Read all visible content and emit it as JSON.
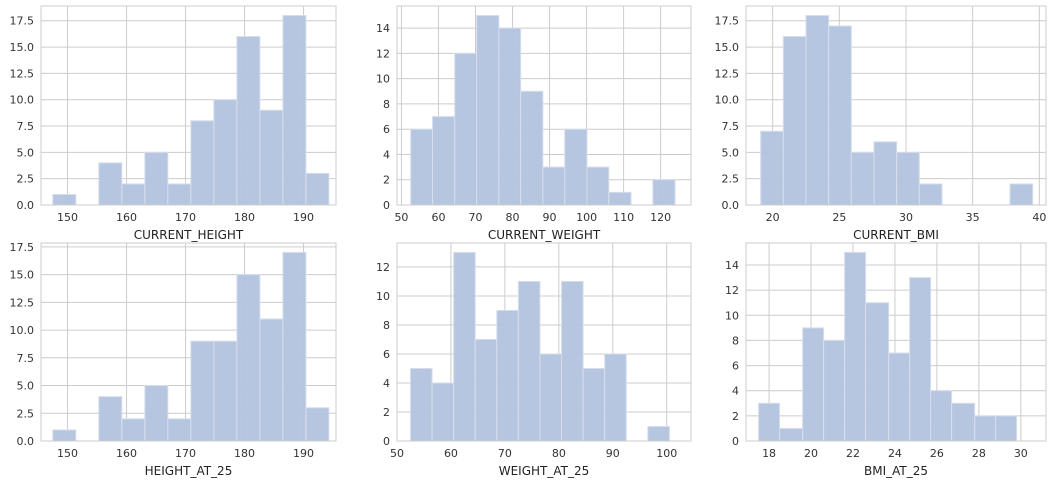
{
  "chart_data": [
    {
      "type": "histogram",
      "xlabel": "CURRENT_HEIGHT",
      "xlim": [
        145.5,
        195.5
      ],
      "ylim": [
        0,
        18.9
      ],
      "xticks": [
        150,
        160,
        170,
        180,
        190
      ],
      "yticks": [
        0.0,
        2.5,
        5.0,
        7.5,
        10.0,
        12.5,
        15.0,
        17.5
      ],
      "bins": [
        {
          "x0": 147.5,
          "x1": 151.4,
          "count": 1
        },
        {
          "x0": 151.4,
          "x1": 155.3,
          "count": 0
        },
        {
          "x0": 155.3,
          "x1": 159.2,
          "count": 4
        },
        {
          "x0": 159.2,
          "x1": 163.1,
          "count": 2
        },
        {
          "x0": 163.1,
          "x1": 167.0,
          "count": 5
        },
        {
          "x0": 167.0,
          "x1": 170.9,
          "count": 2
        },
        {
          "x0": 170.9,
          "x1": 174.8,
          "count": 8
        },
        {
          "x0": 174.8,
          "x1": 178.7,
          "count": 10
        },
        {
          "x0": 178.7,
          "x1": 182.6,
          "count": 16
        },
        {
          "x0": 182.6,
          "x1": 186.5,
          "count": 9
        },
        {
          "x0": 186.5,
          "x1": 190.4,
          "count": 18
        },
        {
          "x0": 190.4,
          "x1": 194.3,
          "count": 3
        }
      ]
    },
    {
      "type": "histogram",
      "xlabel": "CURRENT_WEIGHT",
      "xlim": [
        48.8,
        128.2
      ],
      "ylim": [
        0,
        15.75
      ],
      "xticks": [
        50,
        60,
        70,
        80,
        90,
        100,
        110,
        120
      ],
      "yticks": [
        0,
        2,
        4,
        6,
        8,
        10,
        12,
        14
      ],
      "bins": [
        {
          "x0": 52.5,
          "x1": 58.4,
          "count": 6
        },
        {
          "x0": 58.4,
          "x1": 64.4,
          "count": 7
        },
        {
          "x0": 64.4,
          "x1": 70.3,
          "count": 12
        },
        {
          "x0": 70.3,
          "x1": 76.3,
          "count": 15
        },
        {
          "x0": 76.3,
          "x1": 82.2,
          "count": 14
        },
        {
          "x0": 82.2,
          "x1": 88.2,
          "count": 9
        },
        {
          "x0": 88.2,
          "x1": 94.1,
          "count": 3
        },
        {
          "x0": 94.1,
          "x1": 100.1,
          "count": 6
        },
        {
          "x0": 100.1,
          "x1": 106.0,
          "count": 3
        },
        {
          "x0": 106.0,
          "x1": 112.0,
          "count": 1
        },
        {
          "x0": 112.0,
          "x1": 117.9,
          "count": 0
        },
        {
          "x0": 117.9,
          "x1": 123.9,
          "count": 2
        }
      ]
    },
    {
      "type": "histogram",
      "xlabel": "CURRENT_BMI",
      "xlim": [
        18.0,
        40.5
      ],
      "ylim": [
        0,
        18.9
      ],
      "xticks": [
        20,
        25,
        30,
        35,
        40
      ],
      "yticks": [
        0.0,
        2.5,
        5.0,
        7.5,
        10.0,
        12.5,
        15.0,
        17.5
      ],
      "bins": [
        {
          "x0": 19.1,
          "x1": 20.8,
          "count": 7
        },
        {
          "x0": 20.8,
          "x1": 22.5,
          "count": 16
        },
        {
          "x0": 22.5,
          "x1": 24.2,
          "count": 18
        },
        {
          "x0": 24.2,
          "x1": 25.9,
          "count": 17
        },
        {
          "x0": 25.9,
          "x1": 27.6,
          "count": 5
        },
        {
          "x0": 27.6,
          "x1": 29.3,
          "count": 6
        },
        {
          "x0": 29.3,
          "x1": 31.0,
          "count": 5
        },
        {
          "x0": 31.0,
          "x1": 32.7,
          "count": 2
        },
        {
          "x0": 32.7,
          "x1": 34.4,
          "count": 0
        },
        {
          "x0": 34.4,
          "x1": 36.1,
          "count": 0
        },
        {
          "x0": 36.1,
          "x1": 37.8,
          "count": 0
        },
        {
          "x0": 37.8,
          "x1": 39.5,
          "count": 2
        }
      ]
    },
    {
      "type": "histogram",
      "xlabel": "HEIGHT_AT_25",
      "xlim": [
        145.5,
        195.5
      ],
      "ylim": [
        0,
        17.85
      ],
      "xticks": [
        150,
        160,
        170,
        180,
        190
      ],
      "yticks": [
        0.0,
        2.5,
        5.0,
        7.5,
        10.0,
        12.5,
        15.0,
        17.5
      ],
      "bins": [
        {
          "x0": 147.5,
          "x1": 151.4,
          "count": 1
        },
        {
          "x0": 151.4,
          "x1": 155.3,
          "count": 0
        },
        {
          "x0": 155.3,
          "x1": 159.2,
          "count": 4
        },
        {
          "x0": 159.2,
          "x1": 163.1,
          "count": 2
        },
        {
          "x0": 163.1,
          "x1": 167.0,
          "count": 5
        },
        {
          "x0": 167.0,
          "x1": 170.9,
          "count": 2
        },
        {
          "x0": 170.9,
          "x1": 174.8,
          "count": 9
        },
        {
          "x0": 174.8,
          "x1": 178.7,
          "count": 9
        },
        {
          "x0": 178.7,
          "x1": 182.6,
          "count": 15
        },
        {
          "x0": 182.6,
          "x1": 186.5,
          "count": 11
        },
        {
          "x0": 186.5,
          "x1": 190.4,
          "count": 17
        },
        {
          "x0": 190.4,
          "x1": 194.3,
          "count": 3
        }
      ]
    },
    {
      "type": "histogram",
      "xlabel": "WEIGHT_AT_25",
      "xlim": [
        50.0,
        104.5
      ],
      "ylim": [
        0,
        13.65
      ],
      "xticks": [
        50,
        60,
        70,
        80,
        90,
        100
      ],
      "yticks": [
        0,
        2,
        4,
        6,
        8,
        10,
        12
      ],
      "bins": [
        {
          "x0": 52.5,
          "x1": 56.5,
          "count": 5
        },
        {
          "x0": 56.5,
          "x1": 60.5,
          "count": 4
        },
        {
          "x0": 60.5,
          "x1": 64.5,
          "count": 13
        },
        {
          "x0": 64.5,
          "x1": 68.5,
          "count": 7
        },
        {
          "x0": 68.5,
          "x1": 72.5,
          "count": 9
        },
        {
          "x0": 72.5,
          "x1": 76.5,
          "count": 11
        },
        {
          "x0": 76.5,
          "x1": 80.5,
          "count": 6
        },
        {
          "x0": 80.5,
          "x1": 84.5,
          "count": 11
        },
        {
          "x0": 84.5,
          "x1": 88.5,
          "count": 5
        },
        {
          "x0": 88.5,
          "x1": 92.5,
          "count": 6
        },
        {
          "x0": 92.5,
          "x1": 96.5,
          "count": 0
        },
        {
          "x0": 96.5,
          "x1": 100.5,
          "count": 1
        }
      ]
    },
    {
      "type": "histogram",
      "xlabel": "BMI_AT_25",
      "xlim": [
        16.9,
        31.2
      ],
      "ylim": [
        0,
        15.75
      ],
      "xticks": [
        18,
        20,
        22,
        24,
        26,
        28,
        30
      ],
      "yticks": [
        0,
        2,
        4,
        6,
        8,
        10,
        12,
        14
      ],
      "bins": [
        {
          "x0": 17.5,
          "x1": 18.5,
          "count": 3
        },
        {
          "x0": 18.5,
          "x1": 19.6,
          "count": 1
        },
        {
          "x0": 19.6,
          "x1": 20.6,
          "count": 9
        },
        {
          "x0": 20.6,
          "x1": 21.6,
          "count": 8
        },
        {
          "x0": 21.6,
          "x1": 22.6,
          "count": 15
        },
        {
          "x0": 22.6,
          "x1": 23.7,
          "count": 11
        },
        {
          "x0": 23.7,
          "x1": 24.7,
          "count": 7
        },
        {
          "x0": 24.7,
          "x1": 25.7,
          "count": 13
        },
        {
          "x0": 25.7,
          "x1": 26.7,
          "count": 4
        },
        {
          "x0": 26.7,
          "x1": 27.8,
          "count": 3
        },
        {
          "x0": 27.8,
          "x1": 28.8,
          "count": 2
        },
        {
          "x0": 28.8,
          "x1": 29.8,
          "count": 2
        }
      ]
    }
  ],
  "style": {
    "bar_fill": "#b3c3de",
    "bar_edge": "#d6deeb",
    "grid_color": "#cccccc",
    "spine_color": "#cccccc",
    "background": "#ffffff"
  }
}
